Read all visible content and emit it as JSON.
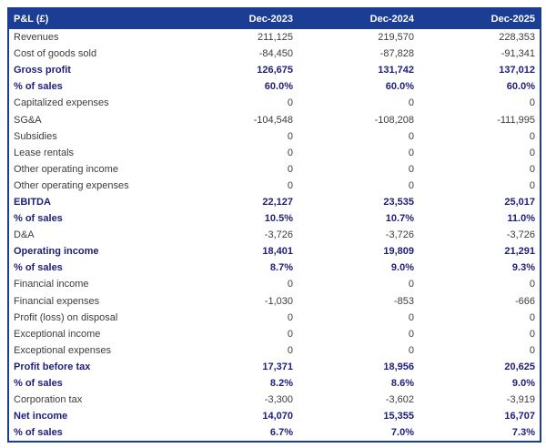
{
  "table": {
    "title_column": "P&L (£)",
    "columns": [
      "Dec-2023",
      "Dec-2024",
      "Dec-2025"
    ],
    "rows": [
      {
        "label": "Revenues",
        "values": [
          "211,125",
          "219,570",
          "228,353"
        ],
        "emphasis": false
      },
      {
        "label": "Cost of goods sold",
        "values": [
          "-84,450",
          "-87,828",
          "-91,341"
        ],
        "emphasis": false
      },
      {
        "label": "Gross profit",
        "values": [
          "126,675",
          "131,742",
          "137,012"
        ],
        "emphasis": true
      },
      {
        "label": "% of sales",
        "values": [
          "60.0%",
          "60.0%",
          "60.0%"
        ],
        "emphasis": true
      },
      {
        "label": "Capitalized expenses",
        "values": [
          "0",
          "0",
          "0"
        ],
        "emphasis": false
      },
      {
        "label": "SG&A",
        "values": [
          "-104,548",
          "-108,208",
          "-111,995"
        ],
        "emphasis": false
      },
      {
        "label": "Subsidies",
        "values": [
          "0",
          "0",
          "0"
        ],
        "emphasis": false
      },
      {
        "label": "Lease rentals",
        "values": [
          "0",
          "0",
          "0"
        ],
        "emphasis": false
      },
      {
        "label": "Other operating income",
        "values": [
          "0",
          "0",
          "0"
        ],
        "emphasis": false
      },
      {
        "label": "Other operating expenses",
        "values": [
          "0",
          "0",
          "0"
        ],
        "emphasis": false
      },
      {
        "label": "EBITDA",
        "values": [
          "22,127",
          "23,535",
          "25,017"
        ],
        "emphasis": true
      },
      {
        "label": "% of sales",
        "values": [
          "10.5%",
          "10.7%",
          "11.0%"
        ],
        "emphasis": true
      },
      {
        "label": "D&A",
        "values": [
          "-3,726",
          "-3,726",
          "-3,726"
        ],
        "emphasis": false
      },
      {
        "label": "Operating income",
        "values": [
          "18,401",
          "19,809",
          "21,291"
        ],
        "emphasis": true
      },
      {
        "label": "% of sales",
        "values": [
          "8.7%",
          "9.0%",
          "9.3%"
        ],
        "emphasis": true
      },
      {
        "label": "Financial income",
        "values": [
          "0",
          "0",
          "0"
        ],
        "emphasis": false
      },
      {
        "label": "Financial expenses",
        "values": [
          "-1,030",
          "-853",
          "-666"
        ],
        "emphasis": false
      },
      {
        "label": "Profit (loss) on disposal",
        "values": [
          "0",
          "0",
          "0"
        ],
        "emphasis": false
      },
      {
        "label": "Exceptional income",
        "values": [
          "0",
          "0",
          "0"
        ],
        "emphasis": false
      },
      {
        "label": "Exceptional expenses",
        "values": [
          "0",
          "0",
          "0"
        ],
        "emphasis": false
      },
      {
        "label": "Profit before tax",
        "values": [
          "17,371",
          "18,956",
          "20,625"
        ],
        "emphasis": true
      },
      {
        "label": "% of sales",
        "values": [
          "8.2%",
          "8.6%",
          "9.0%"
        ],
        "emphasis": true
      },
      {
        "label": "Corporation tax",
        "values": [
          "-3,300",
          "-3,602",
          "-3,919"
        ],
        "emphasis": false
      },
      {
        "label": "Net income",
        "values": [
          "14,070",
          "15,355",
          "16,707"
        ],
        "emphasis": true
      },
      {
        "label": "% of sales",
        "values": [
          "6.7%",
          "7.0%",
          "7.3%"
        ],
        "emphasis": true
      }
    ]
  },
  "colors": {
    "header_bg": "#1c3d94",
    "border": "#1c3d94",
    "emphasis_text": "#1d1d7c",
    "normal_text": "#3c3c3c",
    "header_text": "#ffffff"
  }
}
